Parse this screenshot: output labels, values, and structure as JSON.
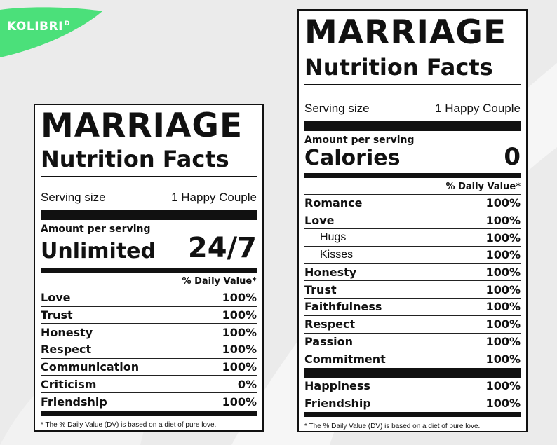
{
  "brand": {
    "logo_text": "KOLIBRI",
    "logo_mark": "D",
    "accent": "#4be07a"
  },
  "left_label": {
    "title": "MARRIAGE",
    "subtitle": "Nutrition Facts",
    "serving_label": "Serving size",
    "serving_value": "1 Happy Couple",
    "amount_per_serving": "Amount per serving",
    "amount_name": "Unlimited",
    "amount_value": "24/7",
    "dv_header": "% Daily Value*",
    "rows": [
      {
        "name": "Love",
        "value": "100%"
      },
      {
        "name": "Trust",
        "value": "100%"
      },
      {
        "name": "Honesty",
        "value": "100%"
      },
      {
        "name": "Respect",
        "value": "100%"
      },
      {
        "name": "Communication",
        "value": "100%"
      },
      {
        "name": "Criticism",
        "value": "0%"
      },
      {
        "name": "Friendship",
        "value": "100%"
      }
    ],
    "footnote": "* The % Daily Value (DV) is based on a diet of pure love."
  },
  "right_label": {
    "title": "MARRIAGE",
    "subtitle": "Nutrition Facts",
    "serving_label": "Serving size",
    "serving_value": "1 Happy Couple",
    "amount_per_serving": "Amount per serving",
    "amount_name": "Calories",
    "amount_value": "0",
    "dv_header": "% Daily Value*",
    "rows": [
      {
        "name": "Romance",
        "value": "100%"
      },
      {
        "name": "Love",
        "value": "100%"
      },
      {
        "name": "Hugs",
        "value": "100%"
      },
      {
        "name": "Kisses",
        "value": "100%"
      },
      {
        "name": "Honesty",
        "value": "100%"
      },
      {
        "name": "Trust",
        "value": "100%"
      },
      {
        "name": "Faithfulness",
        "value": "100%"
      },
      {
        "name": "Respect",
        "value": "100%"
      },
      {
        "name": "Passion",
        "value": "100%"
      },
      {
        "name": "Commitment",
        "value": "100%"
      }
    ],
    "extra_rows": [
      {
        "name": "Happiness",
        "value": "100%"
      },
      {
        "name": "Friendship",
        "value": "100%"
      }
    ],
    "footnote": "* The % Daily Value (DV) is based on a diet of pure love."
  }
}
